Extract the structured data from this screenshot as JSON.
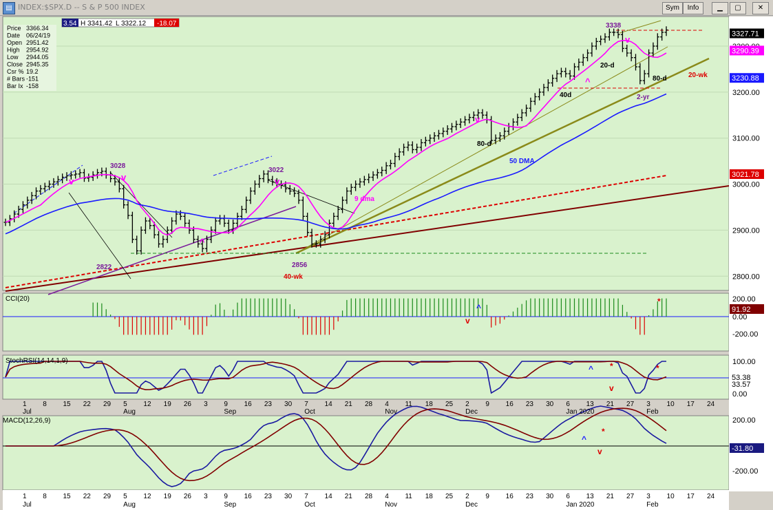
{
  "window": {
    "title": "INDEX:$SPX.D -- S & P 500 INDEX",
    "sym_button": "Sym",
    "info_button": "Info"
  },
  "quote_bar": {
    "open_cut": "3.54",
    "high": "H 3341.42",
    "low": "L 3322.12",
    "change": "-18.07"
  },
  "info_panel": [
    {
      "label": "Price",
      "value": "3366.34"
    },
    {
      "label": "Date",
      "value": "06/24/19"
    },
    {
      "label": "Open",
      "value": "2951.42"
    },
    {
      "label": "High",
      "value": "2954.92"
    },
    {
      "label": "Low",
      "value": "2944.05"
    },
    {
      "label": "Close",
      "value": "2945.35"
    },
    {
      "label": "Csr %",
      "value": "19.2"
    },
    {
      "label": "# Bars",
      "value": "-151"
    },
    {
      "label": "Bar Ix",
      "value": "-158"
    }
  ],
  "colors": {
    "chart_bg": "#d9f2cd",
    "price_bar": "#000000",
    "dma9": "#ff00ff",
    "dma50": "#1a1aff",
    "wk40": "#dd0000",
    "yr2": "#800000",
    "trend_olive": "#8a8a1a",
    "trend_purple": "#7a1a9a",
    "annot_purple": "#7a1a9a",
    "annot_red": "#dd0000",
    "annot_blue": "#1a1aff",
    "annot_magenta": "#ff00ff",
    "cci_pos": "#1a8a1a",
    "cci_neg": "#dd0000",
    "osc_blue": "#1a1aa0",
    "osc_signal": "#800000"
  },
  "chart_data": [
    {
      "type": "line",
      "panel": "price",
      "title": "INDEX:$SPX.D -- S & P 500 INDEX",
      "y_ticks": [
        2800,
        2900,
        3000,
        3100,
        3200,
        3300
      ],
      "y_tick_labels": [
        "2800.00",
        "2900.00",
        "3000.00",
        "3100.00",
        "3200.00",
        "3300.00"
      ],
      "last_values": {
        "price": "3327.71",
        "dma9": "3290.39",
        "dma50": "3230.88",
        "wk40": "3021.78"
      },
      "series": [
        {
          "name": "9 dma"
        },
        {
          "name": "50 DMA"
        },
        {
          "name": "40-wk"
        },
        {
          "name": "2-yr"
        }
      ],
      "annotations": [
        {
          "text": "3028"
        },
        {
          "text": "2822"
        },
        {
          "text": "3022"
        },
        {
          "text": "2856"
        },
        {
          "text": "3338"
        },
        {
          "text": "20-d"
        },
        {
          "text": "80-d"
        },
        {
          "text": "40d"
        },
        {
          "text": "20-wk"
        },
        {
          "text": "v"
        },
        {
          "text": "^"
        }
      ],
      "closes_approx": [
        2917,
        2925,
        2935,
        2945,
        2955,
        2965,
        2975,
        2985,
        2990,
        2995,
        3000,
        3005,
        3010,
        3015,
        3018,
        3020,
        3022,
        3025,
        3013,
        3015,
        3020,
        3025,
        3028,
        3020,
        3012,
        3005,
        2990,
        2955,
        2932,
        2880,
        2855,
        2900,
        2920,
        2910,
        2890,
        2870,
        2880,
        2900,
        2920,
        2935,
        2930,
        2915,
        2900,
        2880,
        2870,
        2860,
        2880,
        2900,
        2920,
        2925,
        2915,
        2900,
        2915,
        2930,
        2945,
        2965,
        2985,
        3000,
        3012,
        3022,
        3010,
        3005,
        3000,
        2998,
        2990,
        2985,
        2980,
        2965,
        2930,
        2895,
        2870,
        2870,
        2880,
        2890,
        2915,
        2930,
        2945,
        2965,
        2985,
        2993,
        3000,
        3005,
        3010,
        3015,
        3020,
        3025,
        3030,
        3040,
        3045,
        3060,
        3070,
        3080,
        3085,
        3075,
        3080,
        3090,
        3095,
        3100,
        3105,
        3110,
        3115,
        3120,
        3125,
        3130,
        3135,
        3140,
        3145,
        3150,
        3155,
        3150,
        3140,
        3095,
        3100,
        3105,
        3115,
        3125,
        3135,
        3145,
        3155,
        3165,
        3180,
        3190,
        3200,
        3210,
        3220,
        3230,
        3240,
        3245,
        3240,
        3235,
        3255,
        3265,
        3275,
        3285,
        3300,
        3310,
        3315,
        3320,
        3330,
        3330,
        3325,
        3295,
        3285,
        3275,
        3255,
        3225,
        3240,
        3285,
        3300,
        3320,
        3330,
        3335
      ]
    },
    {
      "type": "bar",
      "panel": "cci",
      "title": "CCI(20)",
      "y_tick_labels": [
        "200.00",
        "0.00",
        "-200.00"
      ],
      "last_value": "91.92",
      "annotations": [
        {
          "text": "^"
        },
        {
          "text": "v"
        },
        {
          "text": "*"
        }
      ]
    },
    {
      "type": "line",
      "panel": "stochrsi",
      "title": "StochRSI(14,14,1,9)",
      "y_tick_labels": [
        "100.00",
        "0.00"
      ],
      "last_values": [
        "53.38",
        "33.57"
      ],
      "annotations": [
        {
          "text": "^"
        },
        {
          "text": "v"
        },
        {
          "text": "*"
        },
        {
          "text": "*"
        }
      ]
    },
    {
      "type": "line",
      "panel": "macd",
      "title": "MACD(12,26,9)",
      "y_tick_labels": [
        "200.00",
        "-200.00"
      ],
      "last_value": "-31.80",
      "annotations": [
        {
          "text": "^"
        },
        {
          "text": "v"
        },
        {
          "text": "*"
        }
      ]
    }
  ],
  "x_axis": {
    "day_labels": [
      "1",
      "8",
      "15",
      "22",
      "29",
      "5",
      "12",
      "19",
      "26",
      "3",
      "9",
      "16",
      "23",
      "30",
      "7",
      "14",
      "21",
      "28",
      "4",
      "11",
      "18",
      "25",
      "2",
      "9",
      "16",
      "23",
      "30",
      "6",
      "13",
      "21",
      "27",
      "3",
      "10",
      "17",
      "24"
    ],
    "month_labels": [
      "Jul",
      "Aug",
      "Sep",
      "Oct",
      "Nov",
      "Dec",
      "Jan 2020",
      "Feb"
    ]
  }
}
